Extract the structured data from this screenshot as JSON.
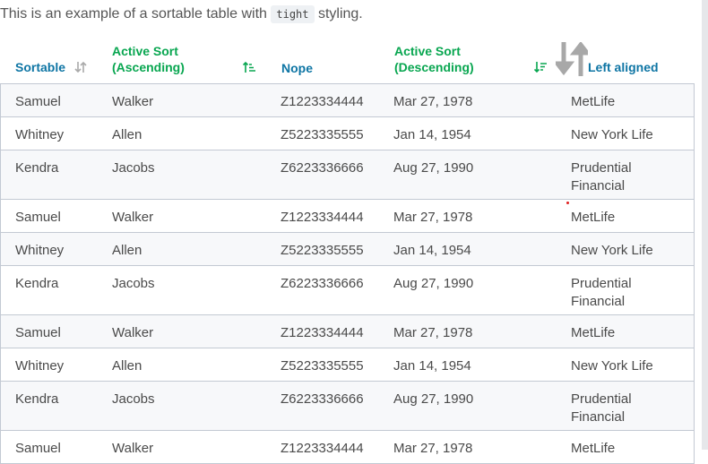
{
  "intro": {
    "before": "This is an example of a sortable table with ",
    "code": "tight",
    "after": " styling."
  },
  "headers": [
    {
      "label": "Sortable",
      "icon": "sort-neutral-icon"
    },
    {
      "line1": "Active Sort",
      "line2": "(Ascending)",
      "icon": "sort-ascending-icon"
    },
    {
      "label": "Nope"
    },
    {
      "line1": "Active Sort",
      "line2": "(Descending)",
      "icon": "sort-descending-icon"
    },
    {
      "label": "Left aligned",
      "icon": "sort-large-icon"
    }
  ],
  "colors": {
    "header": "#0e75a4",
    "active": "#08a650"
  },
  "rows": [
    [
      "Samuel",
      "Walker",
      "Z1223334444",
      "Mar 27, 1978",
      "MetLife"
    ],
    [
      "Whitney",
      "Allen",
      "Z5223335555",
      "Jan 14, 1954",
      "New York Life"
    ],
    [
      "Kendra",
      "Jacobs",
      "Z6223336666",
      "Aug 27, 1990",
      "Prudential Financial"
    ],
    [
      "Samuel",
      "Walker",
      "Z1223334444",
      "Mar 27, 1978",
      "MetLife"
    ],
    [
      "Whitney",
      "Allen",
      "Z5223335555",
      "Jan 14, 1954",
      "New York Life"
    ],
    [
      "Kendra",
      "Jacobs",
      "Z6223336666",
      "Aug 27, 1990",
      "Prudential Financial"
    ],
    [
      "Samuel",
      "Walker",
      "Z1223334444",
      "Mar 27, 1978",
      "MetLife"
    ],
    [
      "Whitney",
      "Allen",
      "Z5223335555",
      "Jan 14, 1954",
      "New York Life"
    ],
    [
      "Kendra",
      "Jacobs",
      "Z6223336666",
      "Aug 27, 1990",
      "Prudential Financial"
    ],
    [
      "Samuel",
      "Walker",
      "Z1223334444",
      "Mar 27, 1978",
      "MetLife"
    ]
  ]
}
